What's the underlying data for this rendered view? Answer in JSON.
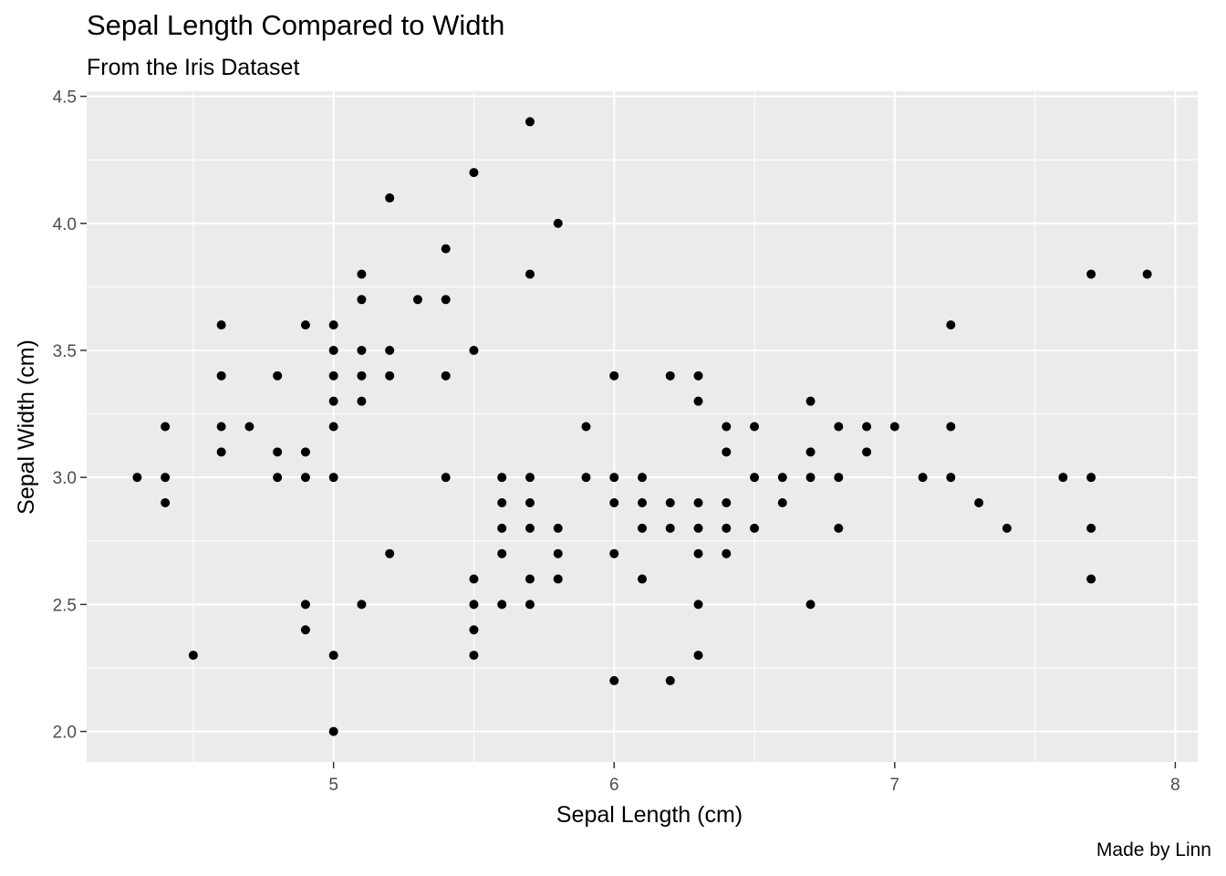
{
  "chart_data": {
    "type": "scatter",
    "title": "Sepal Length Compared to Width",
    "subtitle": "From the Iris Dataset",
    "caption": "Made by Linn",
    "xlabel": "Sepal Length (cm)",
    "ylabel": "Sepal Width (cm)",
    "xlim": [
      4.12,
      8.08
    ],
    "ylim": [
      1.88,
      4.52
    ],
    "xticks": [
      5,
      6,
      7,
      8
    ],
    "xtick_labels": [
      "5",
      "6",
      "7",
      "8"
    ],
    "yticks": [
      2.0,
      2.5,
      3.0,
      3.5,
      4.0,
      4.5
    ],
    "ytick_labels": [
      "2.0",
      "2.5",
      "3.0",
      "3.5",
      "4.0",
      "4.5"
    ],
    "grid": true,
    "panel_color": "#ebebeb",
    "grid_color": "#ffffff",
    "point_color": "#000000",
    "points": [
      [
        4.3,
        3.0
      ],
      [
        4.4,
        3.2
      ],
      [
        4.4,
        3.0
      ],
      [
        4.4,
        2.9
      ],
      [
        4.5,
        2.3
      ],
      [
        4.6,
        3.6
      ],
      [
        4.6,
        3.4
      ],
      [
        4.6,
        3.2
      ],
      [
        4.6,
        3.1
      ],
      [
        4.7,
        3.2
      ],
      [
        4.8,
        3.4
      ],
      [
        4.8,
        3.1
      ],
      [
        4.8,
        3.0
      ],
      [
        4.9,
        3.6
      ],
      [
        4.9,
        3.1
      ],
      [
        4.9,
        3.0
      ],
      [
        4.9,
        2.5
      ],
      [
        4.9,
        2.4
      ],
      [
        5.0,
        3.6
      ],
      [
        5.0,
        3.5
      ],
      [
        5.0,
        3.4
      ],
      [
        5.0,
        3.3
      ],
      [
        5.0,
        3.2
      ],
      [
        5.0,
        3.0
      ],
      [
        5.0,
        2.3
      ],
      [
        5.0,
        2.0
      ],
      [
        5.1,
        3.8
      ],
      [
        5.1,
        3.7
      ],
      [
        5.1,
        3.5
      ],
      [
        5.1,
        3.4
      ],
      [
        5.1,
        3.3
      ],
      [
        5.1,
        2.5
      ],
      [
        5.2,
        4.1
      ],
      [
        5.2,
        3.5
      ],
      [
        5.2,
        3.4
      ],
      [
        5.2,
        2.7
      ],
      [
        5.3,
        3.7
      ],
      [
        5.4,
        3.9
      ],
      [
        5.4,
        3.7
      ],
      [
        5.4,
        3.4
      ],
      [
        5.4,
        3.0
      ],
      [
        5.5,
        4.2
      ],
      [
        5.5,
        3.5
      ],
      [
        5.5,
        2.6
      ],
      [
        5.5,
        2.5
      ],
      [
        5.5,
        2.4
      ],
      [
        5.5,
        2.3
      ],
      [
        5.6,
        3.0
      ],
      [
        5.6,
        2.9
      ],
      [
        5.6,
        2.8
      ],
      [
        5.6,
        2.7
      ],
      [
        5.6,
        2.5
      ],
      [
        5.7,
        4.4
      ],
      [
        5.7,
        3.8
      ],
      [
        5.7,
        3.0
      ],
      [
        5.7,
        2.9
      ],
      [
        5.7,
        2.8
      ],
      [
        5.7,
        2.6
      ],
      [
        5.7,
        2.5
      ],
      [
        5.8,
        4.0
      ],
      [
        5.8,
        2.8
      ],
      [
        5.8,
        2.7
      ],
      [
        5.8,
        2.6
      ],
      [
        5.9,
        3.2
      ],
      [
        5.9,
        3.0
      ],
      [
        6.0,
        3.4
      ],
      [
        6.0,
        3.0
      ],
      [
        6.0,
        2.9
      ],
      [
        6.0,
        2.7
      ],
      [
        6.0,
        2.2
      ],
      [
        6.1,
        3.0
      ],
      [
        6.1,
        2.9
      ],
      [
        6.1,
        2.8
      ],
      [
        6.1,
        2.6
      ],
      [
        6.2,
        3.4
      ],
      [
        6.2,
        2.9
      ],
      [
        6.2,
        2.8
      ],
      [
        6.2,
        2.2
      ],
      [
        6.3,
        3.4
      ],
      [
        6.3,
        3.3
      ],
      [
        6.3,
        2.9
      ],
      [
        6.3,
        2.8
      ],
      [
        6.3,
        2.7
      ],
      [
        6.3,
        2.5
      ],
      [
        6.3,
        2.3
      ],
      [
        6.4,
        3.2
      ],
      [
        6.4,
        3.1
      ],
      [
        6.4,
        2.9
      ],
      [
        6.4,
        2.8
      ],
      [
        6.4,
        2.7
      ],
      [
        6.5,
        3.2
      ],
      [
        6.5,
        3.0
      ],
      [
        6.5,
        2.8
      ],
      [
        6.6,
        3.0
      ],
      [
        6.6,
        2.9
      ],
      [
        6.7,
        3.3
      ],
      [
        6.7,
        3.1
      ],
      [
        6.7,
        3.0
      ],
      [
        6.7,
        2.5
      ],
      [
        6.8,
        3.2
      ],
      [
        6.8,
        3.0
      ],
      [
        6.8,
        2.8
      ],
      [
        6.9,
        3.2
      ],
      [
        6.9,
        3.1
      ],
      [
        7.0,
        3.2
      ],
      [
        7.1,
        3.0
      ],
      [
        7.2,
        3.6
      ],
      [
        7.2,
        3.2
      ],
      [
        7.2,
        3.0
      ],
      [
        7.3,
        2.9
      ],
      [
        7.4,
        2.8
      ],
      [
        7.6,
        3.0
      ],
      [
        7.7,
        3.8
      ],
      [
        7.7,
        3.0
      ],
      [
        7.7,
        2.8
      ],
      [
        7.7,
        2.6
      ],
      [
        7.9,
        3.8
      ]
    ]
  }
}
